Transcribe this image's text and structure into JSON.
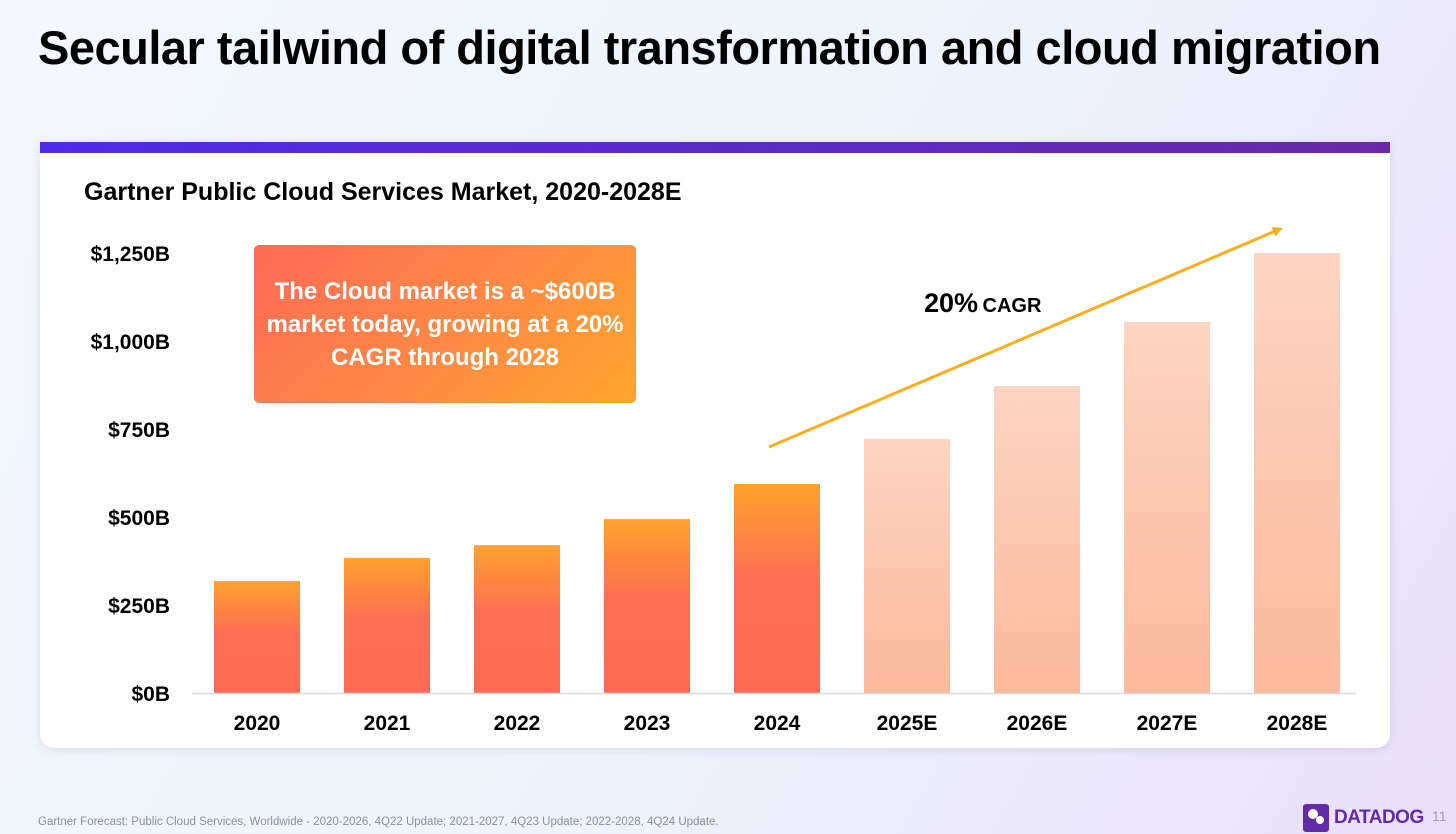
{
  "slide_title": "Secular tailwind of digital transformation and cloud migration",
  "callout": "The Cloud market is a ~$600B market today, growing at a 20% CAGR through 2028",
  "cagr": {
    "value": "20%",
    "label": "CAGR"
  },
  "footnote": "Gartner Forecast: Public Cloud Services, Worldwide - 2020-2026, 4Q22 Update; 2021-2027, 4Q23 Update; 2022-2028, 4Q24 Update.",
  "logo": "DATADOG",
  "page_number": "11",
  "colors": {
    "actual_top": "#ffa22e",
    "actual_bottom": "#ff6a55",
    "estimate_top": "#fdd5c3",
    "estimate_bottom": "#fcb99b",
    "arrow": "#fbad1e",
    "accent": "#4e2ce6"
  },
  "chart_data": {
    "type": "bar",
    "title": "Gartner Public Cloud Services Market, 2020-2028E",
    "xlabel": "",
    "ylabel": "",
    "categories": [
      "2020",
      "2021",
      "2022",
      "2023",
      "2024",
      "2025E",
      "2026E",
      "2027E",
      "2028E"
    ],
    "values": [
      318,
      384,
      420,
      494,
      594,
      722,
      872,
      1054,
      1250
    ],
    "estimate": [
      false,
      false,
      false,
      false,
      false,
      true,
      true,
      true,
      true
    ],
    "unit": "$B",
    "ylim": [
      0,
      1250
    ],
    "yticks": [
      0,
      250,
      500,
      750,
      1000,
      1250
    ],
    "ytick_labels": [
      "$0B",
      "$250B",
      "$500B",
      "$750B",
      "$1,000B",
      "$1,250B"
    ],
    "grid": false,
    "legend": "none"
  }
}
